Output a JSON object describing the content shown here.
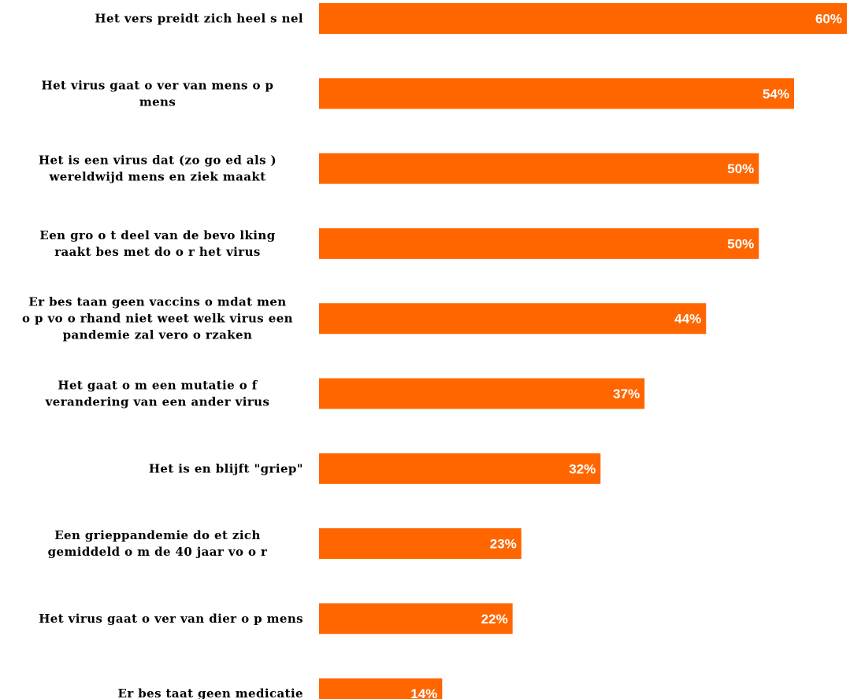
{
  "chart_data": {
    "type": "bar",
    "orientation": "horizontal",
    "bar_color": "#ff6600",
    "value_label_color": "#ffffff",
    "value_suffix": "%",
    "categories": [
      [
        "Het vers preidt zich heel s nel"
      ],
      [
        "Het virus gaat o ver van mens o p",
        "mens"
      ],
      [
        "Het is een virus dat (zo go ed als )",
        "wereldwijd mens en ziek maakt"
      ],
      [
        "Een gro o t deel van de bevo lking",
        "raakt bes met do o r het virus"
      ],
      [
        "Er bes taan geen vaccins o mdat men",
        "o p vo o rhand niet weet welk virus een",
        "pandemie zal vero o rzaken"
      ],
      [
        "Het gaat o m een mutatie o f",
        "verandering van een ander virus"
      ],
      [
        "Het is en blijft \"griep\""
      ],
      [
        "Een grieppandemie do et zich",
        "gemiddeld o m de 40 jaar vo o r"
      ],
      [
        "Het virus gaat o ver van dier o p mens"
      ],
      [
        "Er bes taat geen medicatie"
      ]
    ],
    "values": [
      60,
      54,
      50,
      50,
      44,
      37,
      32,
      23,
      22,
      14
    ],
    "xlim": [
      0,
      60
    ],
    "grid": false,
    "legend": "none"
  }
}
